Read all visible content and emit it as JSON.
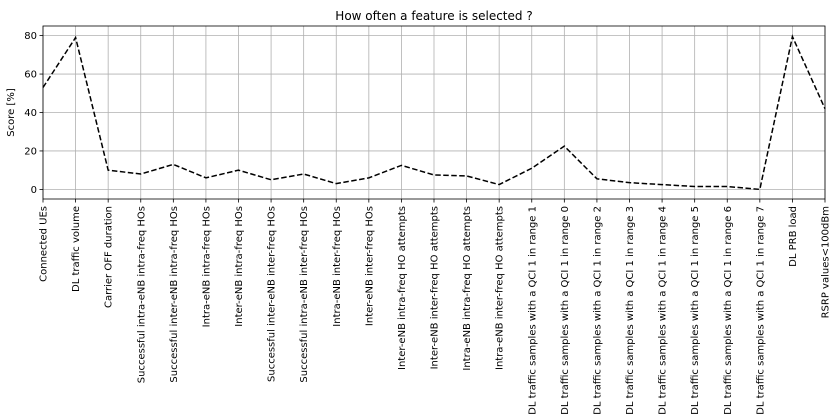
{
  "chart_data": {
    "type": "line",
    "title": "How often a feature is selected ?",
    "ylabel": "Score [%]",
    "xlabel": "",
    "ylim": [
      -5,
      85
    ],
    "yticks": [
      0,
      20,
      40,
      60,
      80
    ],
    "grid": true,
    "line_style": "dashed",
    "line_color": "#000000",
    "categories": [
      "Connected UEs",
      "DL traffic volume",
      "Carrier OFF duration",
      "Successful intra-eNB intra-freq HOs",
      "Successful inter-eNB intra-freq HOs",
      "Intra-eNB intra-freq HOs",
      "Inter-eNB intra-freq HOs",
      "Successful inter-eNB inter-freq HOs",
      "Successful intra-eNB inter-freq HOs",
      "Intra-eNB inter-freq HOs",
      "Inter-eNB inter-freq HOs",
      "Inter-eNB intra-freq HO attempts",
      "Inter-eNB inter-freq HO attempts",
      "Intra-eNB intra-freq HO attempts",
      "Intra-eNB inter-freq HO attempts",
      "DL traffic samples with a QCI 1 in range 1",
      "DL traffic samples with a QCI 1 in range 0",
      "DL traffic samples with a QCI 1 in range 2",
      "DL traffic samples with a QCI 1 in range 3",
      "DL traffic samples with a QCI 1 in range 4",
      "DL traffic samples with a QCI 1 in range 5",
      "DL traffic samples with a QCI 1 in range 6",
      "DL traffic samples with a QCI 1 in range 7",
      "DL PRB load",
      "RSRP values<100dBm"
    ],
    "values": [
      53,
      79,
      10,
      8,
      13,
      6,
      10,
      5,
      8,
      3,
      6,
      12.5,
      7.5,
      7,
      2.5,
      11,
      22.5,
      5.5,
      3.5,
      2.5,
      1.5,
      1.5,
      0,
      79.5,
      42
    ]
  }
}
